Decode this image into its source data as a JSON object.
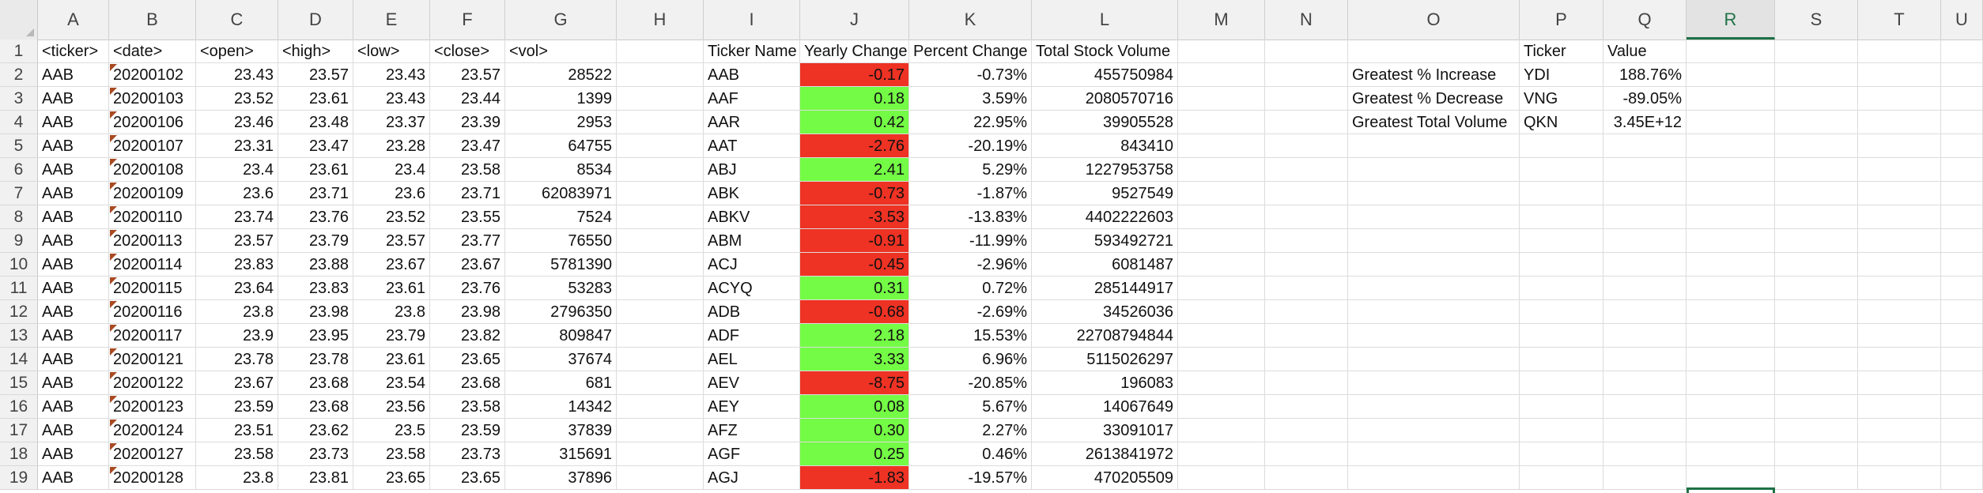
{
  "column_headers": [
    "A",
    "B",
    "C",
    "D",
    "E",
    "F",
    "G",
    "H",
    "I",
    "J",
    "K",
    "L",
    "M",
    "N",
    "O",
    "P",
    "Q",
    "R",
    "S",
    "T",
    "U"
  ],
  "selected_column": "R",
  "row_headers": [
    "1",
    "2",
    "3",
    "4",
    "5",
    "6",
    "7",
    "8",
    "9",
    "10",
    "11",
    "12",
    "13",
    "14",
    "15",
    "16",
    "17",
    "18",
    "19"
  ],
  "colors": {
    "negative_fill": "#ee3224",
    "positive_fill": "#74fb45",
    "selection": "#1e7145"
  },
  "raw_data": {
    "headers": [
      "<ticker>",
      "<date>",
      "<open>",
      "<high>",
      "<low>",
      "<close>",
      "<vol>"
    ],
    "rows": [
      [
        "AAB",
        "20200102",
        "23.43",
        "23.57",
        "23.43",
        "23.57",
        "28522"
      ],
      [
        "AAB",
        "20200103",
        "23.52",
        "23.61",
        "23.43",
        "23.44",
        "1399"
      ],
      [
        "AAB",
        "20200106",
        "23.46",
        "23.48",
        "23.37",
        "23.39",
        "2953"
      ],
      [
        "AAB",
        "20200107",
        "23.31",
        "23.47",
        "23.28",
        "23.47",
        "64755"
      ],
      [
        "AAB",
        "20200108",
        "23.4",
        "23.61",
        "23.4",
        "23.58",
        "8534"
      ],
      [
        "AAB",
        "20200109",
        "23.6",
        "23.71",
        "23.6",
        "23.71",
        "62083971"
      ],
      [
        "AAB",
        "20200110",
        "23.74",
        "23.76",
        "23.52",
        "23.55",
        "7524"
      ],
      [
        "AAB",
        "20200113",
        "23.57",
        "23.79",
        "23.57",
        "23.77",
        "76550"
      ],
      [
        "AAB",
        "20200114",
        "23.83",
        "23.88",
        "23.67",
        "23.67",
        "5781390"
      ],
      [
        "AAB",
        "20200115",
        "23.64",
        "23.83",
        "23.61",
        "23.76",
        "53283"
      ],
      [
        "AAB",
        "20200116",
        "23.8",
        "23.98",
        "23.8",
        "23.98",
        "2796350"
      ],
      [
        "AAB",
        "20200117",
        "23.9",
        "23.95",
        "23.79",
        "23.82",
        "809847"
      ],
      [
        "AAB",
        "20200121",
        "23.78",
        "23.78",
        "23.61",
        "23.65",
        "37674"
      ],
      [
        "AAB",
        "20200122",
        "23.67",
        "23.68",
        "23.54",
        "23.68",
        "681"
      ],
      [
        "AAB",
        "20200123",
        "23.59",
        "23.68",
        "23.56",
        "23.58",
        "14342"
      ],
      [
        "AAB",
        "20200124",
        "23.51",
        "23.62",
        "23.5",
        "23.59",
        "37839"
      ],
      [
        "AAB",
        "20200127",
        "23.58",
        "23.73",
        "23.58",
        "23.73",
        "315691"
      ],
      [
        "AAB",
        "20200128",
        "23.8",
        "23.81",
        "23.65",
        "23.65",
        "37896"
      ]
    ]
  },
  "summary": {
    "headers": [
      "Ticker Name",
      "Yearly Change",
      "Percent Change",
      "Total Stock Volume"
    ],
    "rows": [
      [
        "AAB",
        "-0.17",
        "-0.73%",
        "455750984"
      ],
      [
        "AAF",
        "0.18",
        "3.59%",
        "2080570716"
      ],
      [
        "AAR",
        "0.42",
        "22.95%",
        "39905528"
      ],
      [
        "AAT",
        "-2.76",
        "-20.19%",
        "843410"
      ],
      [
        "ABJ",
        "2.41",
        "5.29%",
        "1227953758"
      ],
      [
        "ABK",
        "-0.73",
        "-1.87%",
        "9527549"
      ],
      [
        "ABKV",
        "-3.53",
        "-13.83%",
        "4402222603"
      ],
      [
        "ABM",
        "-0.91",
        "-11.99%",
        "593492721"
      ],
      [
        "ACJ",
        "-0.45",
        "-2.96%",
        "6081487"
      ],
      [
        "ACYQ",
        "0.31",
        "0.72%",
        "285144917"
      ],
      [
        "ADB",
        "-0.68",
        "-2.69%",
        "34526036"
      ],
      [
        "ADF",
        "2.18",
        "15.53%",
        "22708794844"
      ],
      [
        "AEL",
        "3.33",
        "6.96%",
        "5115026297"
      ],
      [
        "AEV",
        "-8.75",
        "-20.85%",
        "196083"
      ],
      [
        "AEY",
        "0.08",
        "5.67%",
        "14067649"
      ],
      [
        "AFZ",
        "0.30",
        "2.27%",
        "33091017"
      ],
      [
        "AGF",
        "0.25",
        "0.46%",
        "2613841972"
      ],
      [
        "AGJ",
        "-1.83",
        "-19.57%",
        "470205509"
      ]
    ]
  },
  "greatest": {
    "headers": [
      "Ticker",
      "Value"
    ],
    "rows": [
      [
        "Greatest % Increase",
        "YDI",
        "188.76%"
      ],
      [
        "Greatest % Decrease",
        "VNG",
        "-89.05%"
      ],
      [
        "Greatest Total Volume",
        "QKN",
        "3.45E+12"
      ]
    ]
  }
}
